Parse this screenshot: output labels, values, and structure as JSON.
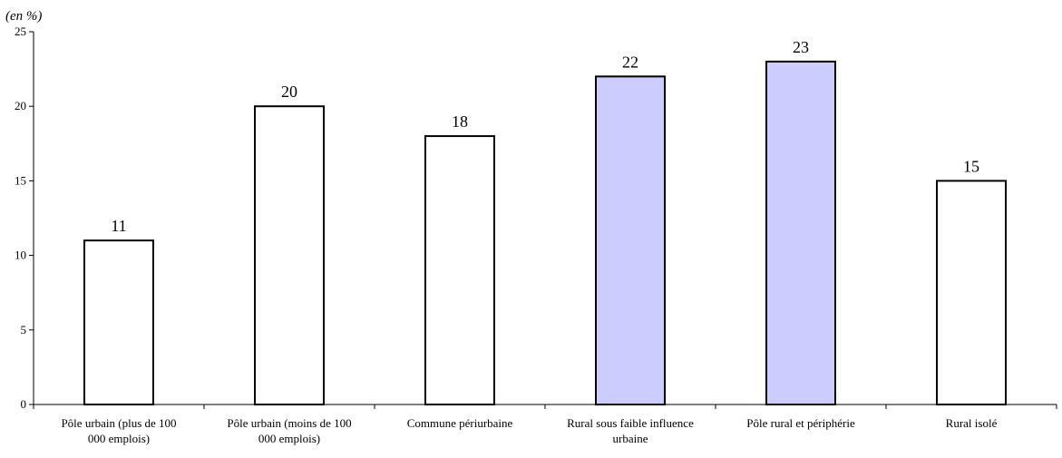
{
  "chart_data": {
    "type": "bar",
    "unit_label": "(en  %)",
    "title": "",
    "xlabel": "",
    "ylabel": "",
    "ylim": [
      0,
      25
    ],
    "yticks": [
      0,
      5,
      10,
      15,
      20,
      25
    ],
    "grid": false,
    "legend": "none",
    "categories": [
      [
        "Pôle urbain (plus de 100",
        "000 emplois)"
      ],
      [
        "Pôle urbain (moins de 100",
        "000 emplois)"
      ],
      [
        "Commune périurbaine"
      ],
      [
        "Rural sous faible influence",
        "urbaine"
      ],
      [
        "Pôle rural et périphérie"
      ],
      [
        "Rural isolé"
      ]
    ],
    "values": [
      11,
      20,
      18,
      22,
      23,
      15
    ],
    "highlighted": [
      false,
      false,
      false,
      true,
      true,
      false
    ],
    "colors": {
      "default_fill": "#ffffff",
      "highlight_fill": "#ccccff",
      "stroke": "#000000"
    }
  }
}
